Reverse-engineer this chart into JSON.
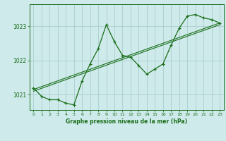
{
  "title": "Graphe pression niveau de la mer (hPa)",
  "bg_color": "#ceeaea",
  "grid_color": "#aacece",
  "line_color": "#1a6e1a",
  "xlim": [
    -0.5,
    23.5
  ],
  "ylim": [
    1020.55,
    1023.65
  ],
  "yticks": [
    1021,
    1022,
    1023
  ],
  "xticks": [
    0,
    1,
    2,
    3,
    4,
    5,
    6,
    7,
    8,
    9,
    10,
    11,
    12,
    13,
    14,
    15,
    16,
    17,
    18,
    19,
    20,
    21,
    22,
    23
  ],
  "series1_x": [
    0,
    1,
    2,
    3,
    4,
    5,
    6,
    7,
    8,
    9,
    10,
    11,
    12,
    13,
    14,
    15,
    16,
    17,
    18,
    19,
    20,
    21,
    22,
    23
  ],
  "series1_y": [
    1021.2,
    1020.95,
    1020.85,
    1020.85,
    1020.75,
    1020.7,
    1021.4,
    1021.9,
    1022.35,
    1023.05,
    1022.55,
    1022.15,
    1022.1,
    1021.85,
    1021.6,
    1021.75,
    1021.9,
    1022.45,
    1022.95,
    1023.3,
    1023.35,
    1023.25,
    1023.2,
    1023.1
  ],
  "trend1_x": [
    0,
    23
  ],
  "trend1_y": [
    1021.1,
    1023.05
  ],
  "trend2_x": [
    0,
    23
  ],
  "trend2_y": [
    1021.15,
    1023.1
  ]
}
